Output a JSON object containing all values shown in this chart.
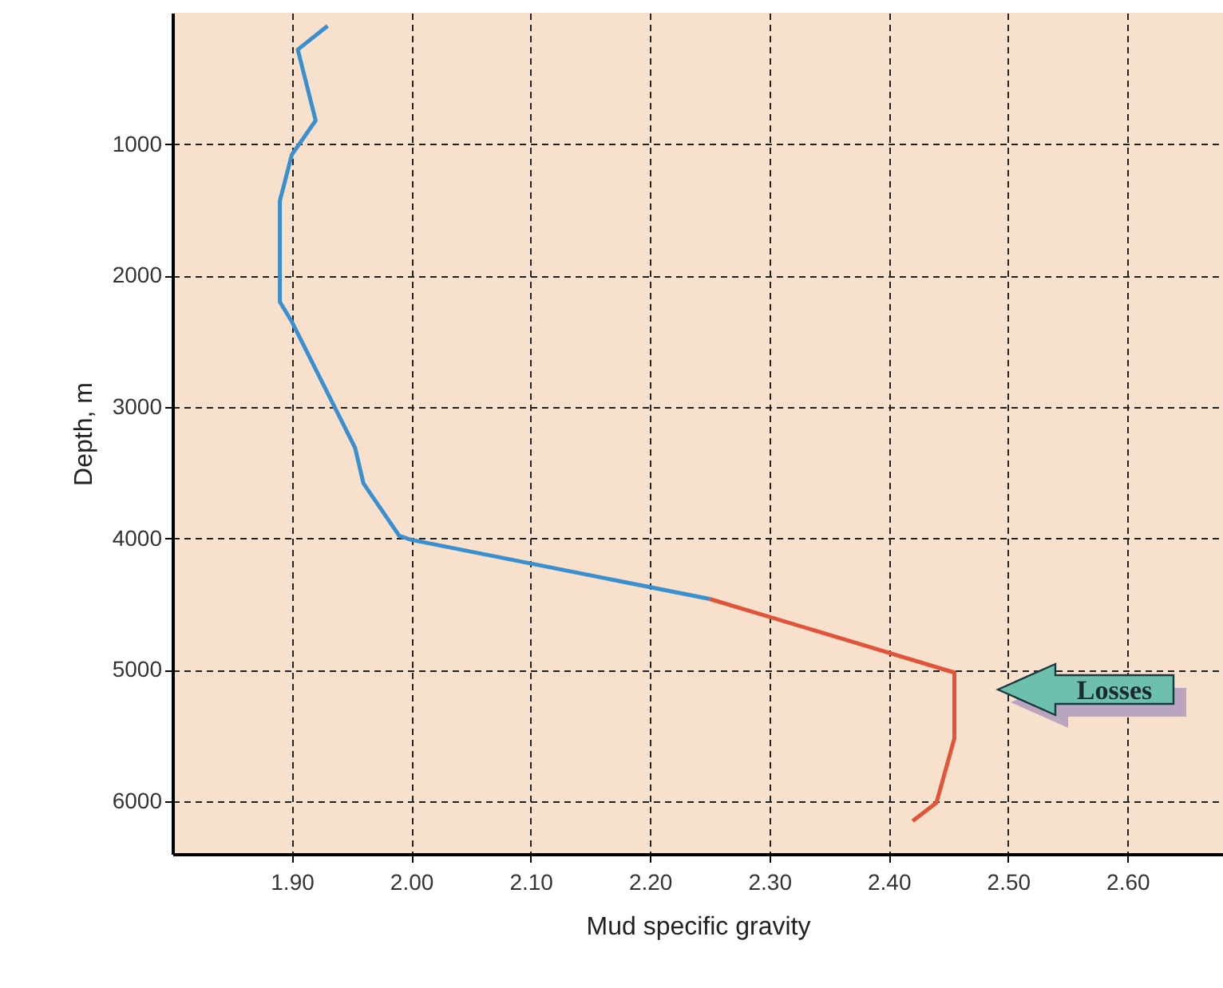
{
  "chart_data": {
    "type": "line",
    "xlabel": "Mud specific gravity",
    "ylabel": "Depth, m",
    "xlim": [
      1.8,
      2.68
    ],
    "ylim": [
      6400,
      0
    ],
    "xticks": [
      {
        "value": 1.9,
        "label": "1.90"
      },
      {
        "value": 2.0,
        "label": "2.00"
      },
      {
        "value": 2.1,
        "label": "2.10"
      },
      {
        "value": 2.2,
        "label": "2.20"
      },
      {
        "value": 2.3,
        "label": "2.30"
      },
      {
        "value": 2.4,
        "label": "2.40"
      },
      {
        "value": 2.5,
        "label": "2.50"
      },
      {
        "value": 2.6,
        "label": "2.60"
      }
    ],
    "yticks": [
      1000,
      2000,
      3000,
      4000,
      5000,
      6000
    ],
    "grid": true,
    "line_style": "solid",
    "series": [
      {
        "color": "#3a8fcf",
        "x": [
          1.93,
          1.905,
          1.92,
          1.9,
          1.89,
          1.89,
          1.9,
          1.953,
          1.96,
          1.99,
          2.0,
          2.25
        ],
        "values": [
          100,
          280,
          820,
          1080,
          1430,
          2200,
          2350,
          3310,
          3580,
          3980,
          4010,
          4460
        ]
      },
      {
        "color": "#e0553a",
        "x": [
          2.25,
          2.36,
          2.455,
          2.455,
          2.44,
          2.42
        ],
        "values": [
          4460,
          4760,
          5020,
          5520,
          6010,
          6150
        ]
      }
    ],
    "annotations": [
      "Losses"
    ]
  }
}
